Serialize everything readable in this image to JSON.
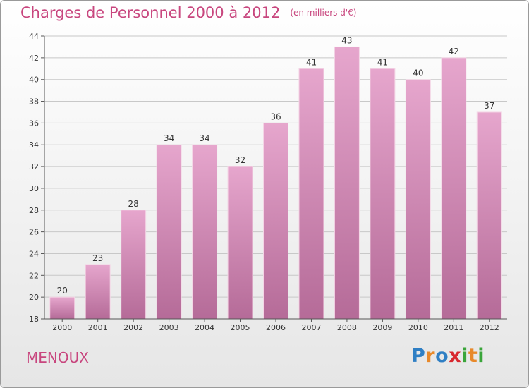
{
  "title": "Charges de Personnel 2000 à 2012",
  "unit_note": "(en milliers d'€)",
  "commune": "MENOUX",
  "logo": {
    "text": "Proxiti",
    "letters": [
      {
        "ch": "P",
        "color": "#2f7fc4"
      },
      {
        "ch": "r",
        "color": "#e8892a"
      },
      {
        "ch": "o",
        "color": "#2f7fc4"
      },
      {
        "ch": "x",
        "color": "#d8282f"
      },
      {
        "ch": "i",
        "color": "#3aa53a"
      },
      {
        "ch": "t",
        "color": "#e8892a"
      },
      {
        "ch": "i",
        "color": "#3aa53a"
      }
    ]
  },
  "colors": {
    "accent": "#c8467e",
    "bar_light": "#e6a6cd",
    "bar_dark": "#b56b98",
    "grid": "#c8c8c8",
    "axis_text": "#333333"
  },
  "chart_data": {
    "type": "bar",
    "categories": [
      "2000",
      "2001",
      "2002",
      "2003",
      "2004",
      "2005",
      "2006",
      "2007",
      "2008",
      "2009",
      "2010",
      "2011",
      "2012"
    ],
    "values": [
      20,
      23,
      28,
      34,
      34,
      32,
      36,
      41,
      43,
      41,
      40,
      42,
      37
    ],
    "ylim": [
      18,
      44
    ],
    "yticks": [
      18,
      20,
      22,
      24,
      26,
      28,
      30,
      32,
      34,
      36,
      38,
      40,
      42,
      44
    ],
    "grid": true,
    "legend": "none"
  }
}
